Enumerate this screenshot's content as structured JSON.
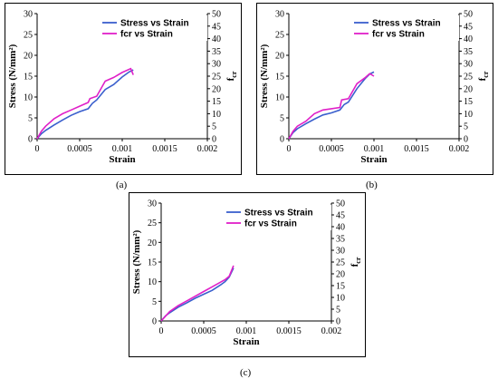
{
  "colors": {
    "stress": "#3a5fcd",
    "fcr": "#e020c8"
  },
  "chart_data": [
    {
      "type": "line",
      "caption": "(a)",
      "xlabel": "Strain",
      "ylabel": "Stress (N/mm²)",
      "y2label": "fₑᵣ",
      "y2label_base": "f",
      "y2label_sub": "cr",
      "xlim": [
        0,
        0.002
      ],
      "ylim": [
        0,
        30
      ],
      "y2lim": [
        0,
        50
      ],
      "xticks": [
        "0",
        "0.0005",
        "0.001",
        "0.0015",
        "0.002"
      ],
      "yticks": [
        "0",
        "5",
        "10",
        "15",
        "20",
        "25",
        "30"
      ],
      "y2ticks": [
        "0",
        "5",
        "10",
        "15",
        "20",
        "25",
        "30",
        "35",
        "40",
        "45",
        "50"
      ],
      "legend_position": "top-right",
      "grid": false,
      "series": [
        {
          "name": "Stress vs Strain",
          "axis": "left",
          "x": [
            0,
            5e-05,
            0.0001,
            0.0002,
            0.0003,
            0.0004,
            0.0005,
            0.0006,
            0.00065,
            0.0007,
            0.0008,
            0.0009,
            0.001,
            0.00108,
            0.00113
          ],
          "y": [
            0,
            1.2,
            2.0,
            3.3,
            4.5,
            5.6,
            6.5,
            7.2,
            8.5,
            9.3,
            11.8,
            13.0,
            14.8,
            16.0,
            16.5
          ]
        },
        {
          "name": "fcr vs Strain",
          "axis": "right",
          "x": [
            0,
            5e-05,
            0.0001,
            0.0002,
            0.0003,
            0.0004,
            0.0005,
            0.0006,
            0.00062,
            0.0007,
            0.0008,
            0.0009,
            0.001,
            0.0011,
            0.00113
          ],
          "y": [
            0,
            3,
            5,
            8,
            10,
            11.5,
            13,
            14.5,
            16,
            17,
            23,
            24.5,
            26.5,
            28,
            25.5
          ]
        }
      ]
    },
    {
      "type": "line",
      "caption": "(b)",
      "xlabel": "Strain",
      "ylabel": "Stress (N/mm²)",
      "y2label_base": "f",
      "y2label_sub": "cr",
      "xlim": [
        0,
        0.002
      ],
      "ylim": [
        0,
        30
      ],
      "y2lim": [
        0,
        50
      ],
      "xticks": [
        "0",
        "0.0005",
        "0.001",
        "0.0015",
        "0.002"
      ],
      "yticks": [
        "0",
        "5",
        "10",
        "15",
        "20",
        "25",
        "30"
      ],
      "y2ticks": [
        "0",
        "5",
        "10",
        "15",
        "20",
        "25",
        "30",
        "35",
        "40",
        "45",
        "50"
      ],
      "legend_position": "top-right",
      "grid": false,
      "series": [
        {
          "name": "Stress vs Strain",
          "axis": "left",
          "x": [
            0,
            5e-05,
            0.0001,
            0.0002,
            0.0003,
            0.0004,
            0.0005,
            0.0006,
            0.00065,
            0.0007,
            0.0008,
            0.0009,
            0.00095,
            0.001
          ],
          "y": [
            0,
            1.5,
            2.4,
            3.6,
            4.7,
            5.7,
            6.2,
            6.9,
            8.2,
            8.8,
            12.0,
            14.5,
            15.5,
            16.0
          ]
        },
        {
          "name": "fcr vs Strain",
          "axis": "right",
          "x": [
            0,
            5e-05,
            0.0001,
            0.0002,
            0.0003,
            0.0004,
            0.0005,
            0.0006,
            0.00062,
            0.0007,
            0.0008,
            0.0009,
            0.00095,
            0.001
          ],
          "y": [
            0,
            3,
            5,
            7,
            10,
            11.5,
            12,
            12.5,
            15.5,
            16,
            22,
            24.5,
            26,
            25
          ]
        }
      ]
    },
    {
      "type": "line",
      "caption": "(c)",
      "xlabel": "Strain",
      "ylabel": "Stress (N/mm²)",
      "y2label_base": "f",
      "y2label_sub": "cr",
      "xlim": [
        0,
        0.002
      ],
      "ylim": [
        0,
        30
      ],
      "y2lim": [
        0,
        50
      ],
      "xticks": [
        "0",
        "0.0005",
        "0.001",
        "0.0015",
        "0.002"
      ],
      "yticks": [
        "0",
        "5",
        "10",
        "15",
        "20",
        "25",
        "30"
      ],
      "y2ticks": [
        "0",
        "5",
        "10",
        "15",
        "20",
        "25",
        "30",
        "35",
        "40",
        "45",
        "50"
      ],
      "legend_position": "top-right",
      "grid": false,
      "series": [
        {
          "name": "Stress vs Strain",
          "axis": "left",
          "x": [
            0,
            5e-05,
            0.0001,
            0.0002,
            0.0003,
            0.0004,
            0.0005,
            0.0006,
            0.0007,
            0.00075,
            0.0008,
            0.00085
          ],
          "y": [
            0,
            1.3,
            2.1,
            3.5,
            4.6,
            5.8,
            6.8,
            7.8,
            9.2,
            10.0,
            11.2,
            13.5
          ]
        },
        {
          "name": "fcr vs Strain",
          "axis": "right",
          "x": [
            0,
            5e-05,
            0.0001,
            0.0002,
            0.0003,
            0.0004,
            0.0005,
            0.0006,
            0.0007,
            0.00075,
            0.0008,
            0.00085
          ],
          "y": [
            0,
            2,
            4,
            6.5,
            8.5,
            10.5,
            12.5,
            14.5,
            16.5,
            17.5,
            19,
            23.5
          ]
        }
      ]
    }
  ]
}
